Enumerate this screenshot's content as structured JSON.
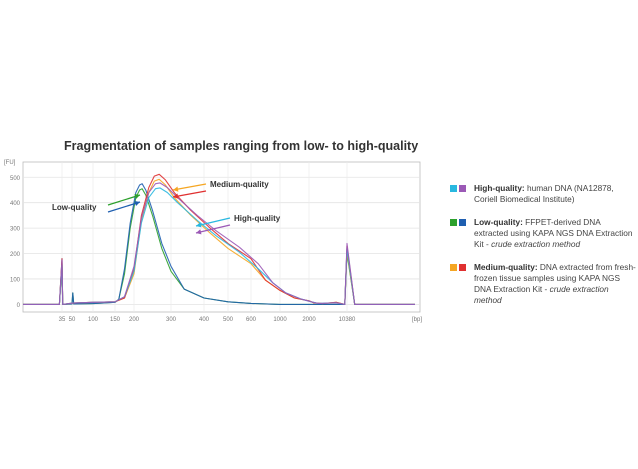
{
  "chart_data": {
    "type": "line",
    "title": "Fragmentation of samples ranging from low- to high-quality",
    "ylabel": "[FU]",
    "xlabel": "[bp]",
    "y_ticks": [
      0,
      100,
      200,
      300,
      400,
      500
    ],
    "ylim": [
      -30,
      560
    ],
    "x_ticks": [
      "35",
      "50",
      "100",
      "150",
      "200",
      "300",
      "400",
      "500",
      "600",
      "1000",
      "2000",
      "10380"
    ],
    "grid": true,
    "series": [
      {
        "name": "Low-quality",
        "colors": [
          "#2ca02c",
          "#1f5fb0"
        ],
        "points": [
          [
            20,
            0
          ],
          [
            34,
            0
          ],
          [
            35,
            160
          ],
          [
            36,
            0
          ],
          [
            50,
            2
          ],
          [
            52,
            45
          ],
          [
            54,
            2
          ],
          [
            100,
            3
          ],
          [
            150,
            8
          ],
          [
            160,
            20
          ],
          [
            175,
            120
          ],
          [
            190,
            300
          ],
          [
            205,
            420
          ],
          [
            215,
            450
          ],
          [
            222,
            455
          ],
          [
            232,
            430
          ],
          [
            250,
            350
          ],
          [
            275,
            220
          ],
          [
            300,
            130
          ],
          [
            340,
            60
          ],
          [
            400,
            25
          ],
          [
            500,
            10
          ],
          [
            600,
            4
          ],
          [
            1000,
            0
          ],
          [
            3000,
            0
          ],
          [
            8000,
            0
          ],
          [
            9900,
            0
          ],
          [
            10380,
            200
          ],
          [
            10900,
            0
          ],
          [
            15000,
            0
          ]
        ]
      },
      {
        "name": "Medium-quality",
        "colors": [
          "#f5a623",
          "#e03030"
        ],
        "points": [
          [
            20,
            0
          ],
          [
            34,
            0
          ],
          [
            35,
            160
          ],
          [
            36,
            0
          ],
          [
            52,
            5
          ],
          [
            100,
            8
          ],
          [
            150,
            10
          ],
          [
            175,
            25
          ],
          [
            200,
            120
          ],
          [
            220,
            330
          ],
          [
            240,
            440
          ],
          [
            255,
            485
          ],
          [
            268,
            492
          ],
          [
            285,
            470
          ],
          [
            310,
            420
          ],
          [
            360,
            350
          ],
          [
            420,
            285
          ],
          [
            500,
            220
          ],
          [
            600,
            160
          ],
          [
            800,
            95
          ],
          [
            1000,
            55
          ],
          [
            1500,
            25
          ],
          [
            2000,
            14
          ],
          [
            3000,
            6
          ],
          [
            5000,
            3
          ],
          [
            8000,
            8
          ],
          [
            9900,
            0
          ],
          [
            10380,
            210
          ],
          [
            10900,
            0
          ],
          [
            15000,
            0
          ]
        ]
      },
      {
        "name": "High-quality",
        "colors": [
          "#29b8e0",
          "#9b59b6"
        ],
        "points": [
          [
            20,
            0
          ],
          [
            34,
            0
          ],
          [
            35,
            155
          ],
          [
            36,
            0
          ],
          [
            52,
            5
          ],
          [
            100,
            8
          ],
          [
            150,
            10
          ],
          [
            175,
            30
          ],
          [
            200,
            130
          ],
          [
            220,
            320
          ],
          [
            240,
            420
          ],
          [
            258,
            455
          ],
          [
            270,
            458
          ],
          [
            290,
            440
          ],
          [
            320,
            400
          ],
          [
            380,
            330
          ],
          [
            450,
            270
          ],
          [
            550,
            205
          ],
          [
            700,
            140
          ],
          [
            900,
            85
          ],
          [
            1200,
            45
          ],
          [
            1700,
            22
          ],
          [
            2500,
            10
          ],
          [
            4000,
            4
          ],
          [
            8000,
            6
          ],
          [
            9900,
            0
          ],
          [
            10380,
            220
          ],
          [
            10900,
            0
          ],
          [
            15000,
            0
          ]
        ]
      }
    ],
    "annotations": [
      {
        "text": "Low-quality",
        "series": "Low-quality"
      },
      {
        "text": "Medium-quality",
        "series": "Medium-quality"
      },
      {
        "text": "High-quality",
        "series": "High-quality"
      }
    ]
  },
  "legend": [
    {
      "colors": [
        "#29b8e0",
        "#9b59b6"
      ],
      "label": "High-quality:",
      "text": " human DNA (NA12878, Coriell Biomedical Institute)",
      "italic": ""
    },
    {
      "colors": [
        "#2ca02c",
        "#1f5fb0"
      ],
      "label": "Low-quality:",
      "text": " FFPET-derived DNA extracted using KAPA NGS DNA Extraction Kit - ",
      "italic": "crude extraction method"
    },
    {
      "colors": [
        "#f5a623",
        "#e03030"
      ],
      "label": "Medium-quality:",
      "text": " DNA extracted from fresh-frozen tissue samples using KAPA NGS DNA Extraction Kit - ",
      "italic": "crude extraction method"
    }
  ]
}
